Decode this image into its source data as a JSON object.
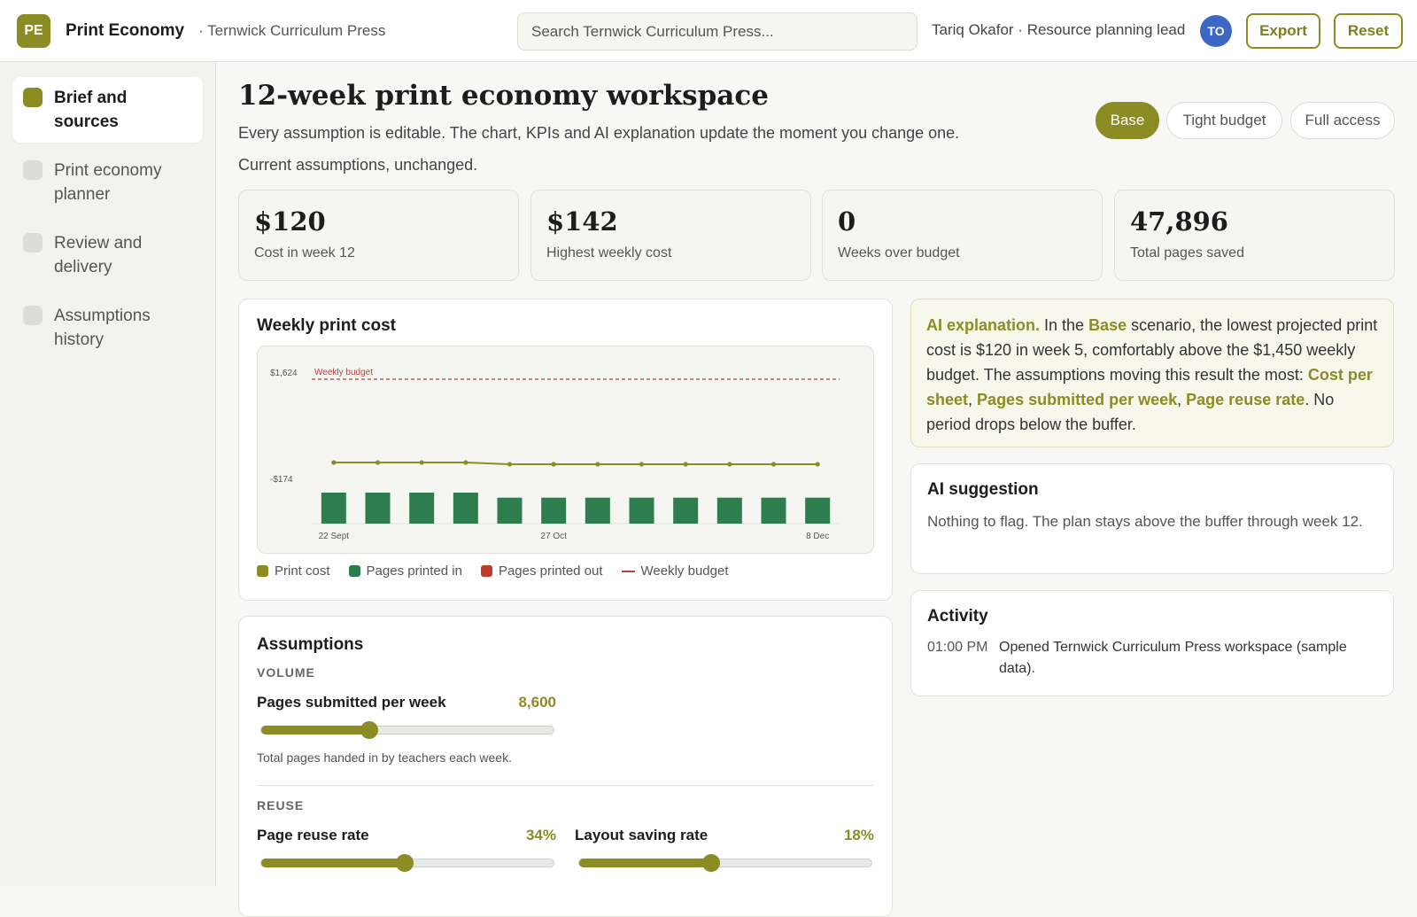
{
  "app": {
    "initials": "PE",
    "name": "Print Economy",
    "org": "· Ternwick Curriculum Press"
  },
  "search": {
    "placeholder": "Search Ternwick Curriculum Press..."
  },
  "user": {
    "label": "Tariq Okafor · Resource planning lead",
    "initials": "TO"
  },
  "actions": {
    "export": "Export",
    "reset": "Reset"
  },
  "sidebar": {
    "items": [
      {
        "label": "Brief and sources",
        "active": true
      },
      {
        "label": "Print economy planner",
        "active": false
      },
      {
        "label": "Review and delivery",
        "active": false
      },
      {
        "label": "Assumptions history",
        "active": false
      }
    ]
  },
  "page": {
    "title": "12-week print economy workspace",
    "description": "Every assumption is editable. The chart, KPIs and AI explanation update the moment you change one.",
    "status": "Current assumptions, unchanged."
  },
  "scenarios": [
    {
      "label": "Base",
      "active": true
    },
    {
      "label": "Tight budget",
      "active": false
    },
    {
      "label": "Full access",
      "active": false
    }
  ],
  "kpis": [
    {
      "value": "$120",
      "label": "Cost in week 12"
    },
    {
      "value": "$142",
      "label": "Highest weekly cost"
    },
    {
      "value": "0",
      "label": "Weeks over budget"
    },
    {
      "value": "47,896",
      "label": "Total pages saved"
    }
  ],
  "chart_card": {
    "title": "Weekly print cost"
  },
  "chart_data": {
    "type": "bar",
    "y_tick_labels": [
      "$1,624",
      "-$174"
    ],
    "x_tick_labels": [
      "22 Sept",
      "27 Oct",
      "8 Dec"
    ],
    "budget_label": "Weekly budget",
    "series": [
      {
        "name": "Print cost",
        "type": "line",
        "values": [
          142,
          142,
          142,
          142,
          120,
          120,
          120,
          120,
          120,
          120,
          120,
          120
        ]
      },
      {
        "name": "Pages printed in",
        "type": "bar",
        "values": [
          8600,
          8600,
          8600,
          8600,
          7200,
          7200,
          7200,
          7200,
          7200,
          7200,
          7200,
          7200
        ]
      }
    ],
    "legend": [
      "Print cost",
      "Pages printed in",
      "Pages printed out",
      "Weekly budget"
    ],
    "legend_colors": [
      "#8c8c24",
      "#2e7d4f",
      "#c0392b",
      "#b94040"
    ]
  },
  "assumptions": {
    "title": "Assumptions",
    "volume_label": "VOLUME",
    "reuse_label": "REUSE",
    "pages_submitted": {
      "label": "Pages submitted per week",
      "value": "8,600",
      "fraction": 0.37,
      "help": "Total pages handed in by teachers each week."
    },
    "page_reuse": {
      "label": "Page reuse rate",
      "value": "34%",
      "fraction": 0.49
    },
    "layout_saving": {
      "label": "Layout saving rate",
      "value": "18%",
      "fraction": 0.45
    }
  },
  "ai_explanation": {
    "lead": "AI explanation.",
    "t1": " In the ",
    "scenario": "Base",
    "t2": " scenario, the lowest projected print cost is $120 in week 5, comfortably above the $1,450 weekly budget. The assumptions moving this result the most: ",
    "d1": "Cost per sheet",
    "sep1": ", ",
    "d2": "Pages submitted per week",
    "sep2": ", ",
    "d3": "Page reuse rate",
    "t3": ". No period drops below the buffer."
  },
  "ai_suggestion": {
    "title": "AI suggestion",
    "text": "Nothing to flag. The plan stays above the buffer through week 12."
  },
  "activity": {
    "title": "Activity",
    "items": [
      {
        "time": "01:00 PM",
        "text": "Opened Ternwick Curriculum Press workspace (sample data)."
      }
    ]
  }
}
